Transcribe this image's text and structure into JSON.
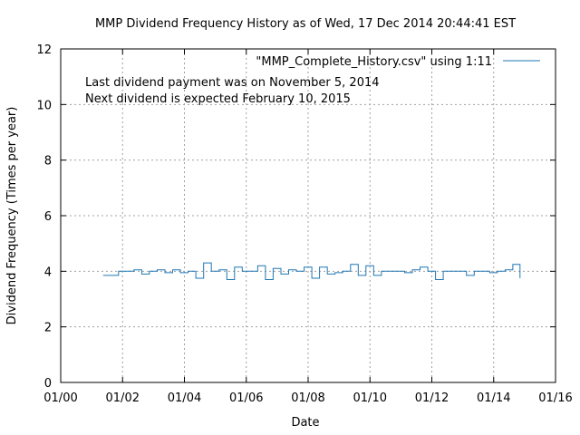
{
  "chart_data": {
    "type": "line",
    "title": "MMP Dividend Frequency History as of Wed, 17 Dec 2014 20:44:41 EST",
    "xlabel": "Date",
    "ylabel": "Dividend Frequency (Times per year)",
    "xlim": [
      2000.0,
      2016.0
    ],
    "ylim": [
      0,
      12
    ],
    "x_ticks": [
      {
        "value": 2000,
        "label": "01/00"
      },
      {
        "value": 2002,
        "label": "01/02"
      },
      {
        "value": 2004,
        "label": "01/04"
      },
      {
        "value": 2006,
        "label": "01/06"
      },
      {
        "value": 2008,
        "label": "01/08"
      },
      {
        "value": 2010,
        "label": "01/10"
      },
      {
        "value": 2012,
        "label": "01/12"
      },
      {
        "value": 2014,
        "label": "01/14"
      },
      {
        "value": 2016,
        "label": "01/16"
      }
    ],
    "y_ticks": [
      0,
      2,
      4,
      6,
      8,
      10,
      12
    ],
    "grid": true,
    "legend_position": "top-right",
    "annotations": [
      "Last dividend payment was on November 5, 2014",
      "Next dividend is expected February 10, 2015"
    ],
    "series": [
      {
        "name": "\"MMP_Complete_History.csv\" using 1:11",
        "color": "#1f77b4",
        "step": true,
        "x": [
          2001.37,
          2001.87,
          2002.12,
          2002.37,
          2002.62,
          2002.87,
          2003.12,
          2003.37,
          2003.62,
          2003.87,
          2004.12,
          2004.37,
          2004.62,
          2004.87,
          2005.12,
          2005.37,
          2005.62,
          2005.87,
          2006.12,
          2006.37,
          2006.62,
          2006.87,
          2007.12,
          2007.37,
          2007.62,
          2007.87,
          2008.12,
          2008.37,
          2008.62,
          2008.87,
          2009.12,
          2009.37,
          2009.62,
          2009.87,
          2010.12,
          2010.37,
          2010.62,
          2010.87,
          2011.12,
          2011.37,
          2011.62,
          2011.87,
          2012.12,
          2012.37,
          2012.62,
          2012.87,
          2013.12,
          2013.37,
          2013.62,
          2013.87,
          2014.12,
          2014.37,
          2014.62,
          2014.85
        ],
        "y": [
          3.85,
          4.0,
          4.0,
          4.05,
          3.9,
          4.0,
          4.05,
          3.95,
          4.05,
          3.95,
          4.0,
          3.75,
          4.3,
          4.0,
          4.05,
          3.7,
          4.15,
          4.0,
          4.0,
          4.2,
          3.7,
          4.1,
          3.9,
          4.05,
          4.0,
          4.15,
          3.75,
          4.15,
          3.9,
          3.95,
          4.0,
          4.25,
          3.85,
          4.2,
          3.85,
          4.0,
          4.0,
          4.0,
          3.95,
          4.05,
          4.15,
          4.0,
          3.7,
          4.0,
          4.0,
          4.0,
          3.85,
          4.0,
          4.0,
          3.95,
          4.0,
          4.05,
          4.25,
          3.75
        ]
      }
    ]
  }
}
